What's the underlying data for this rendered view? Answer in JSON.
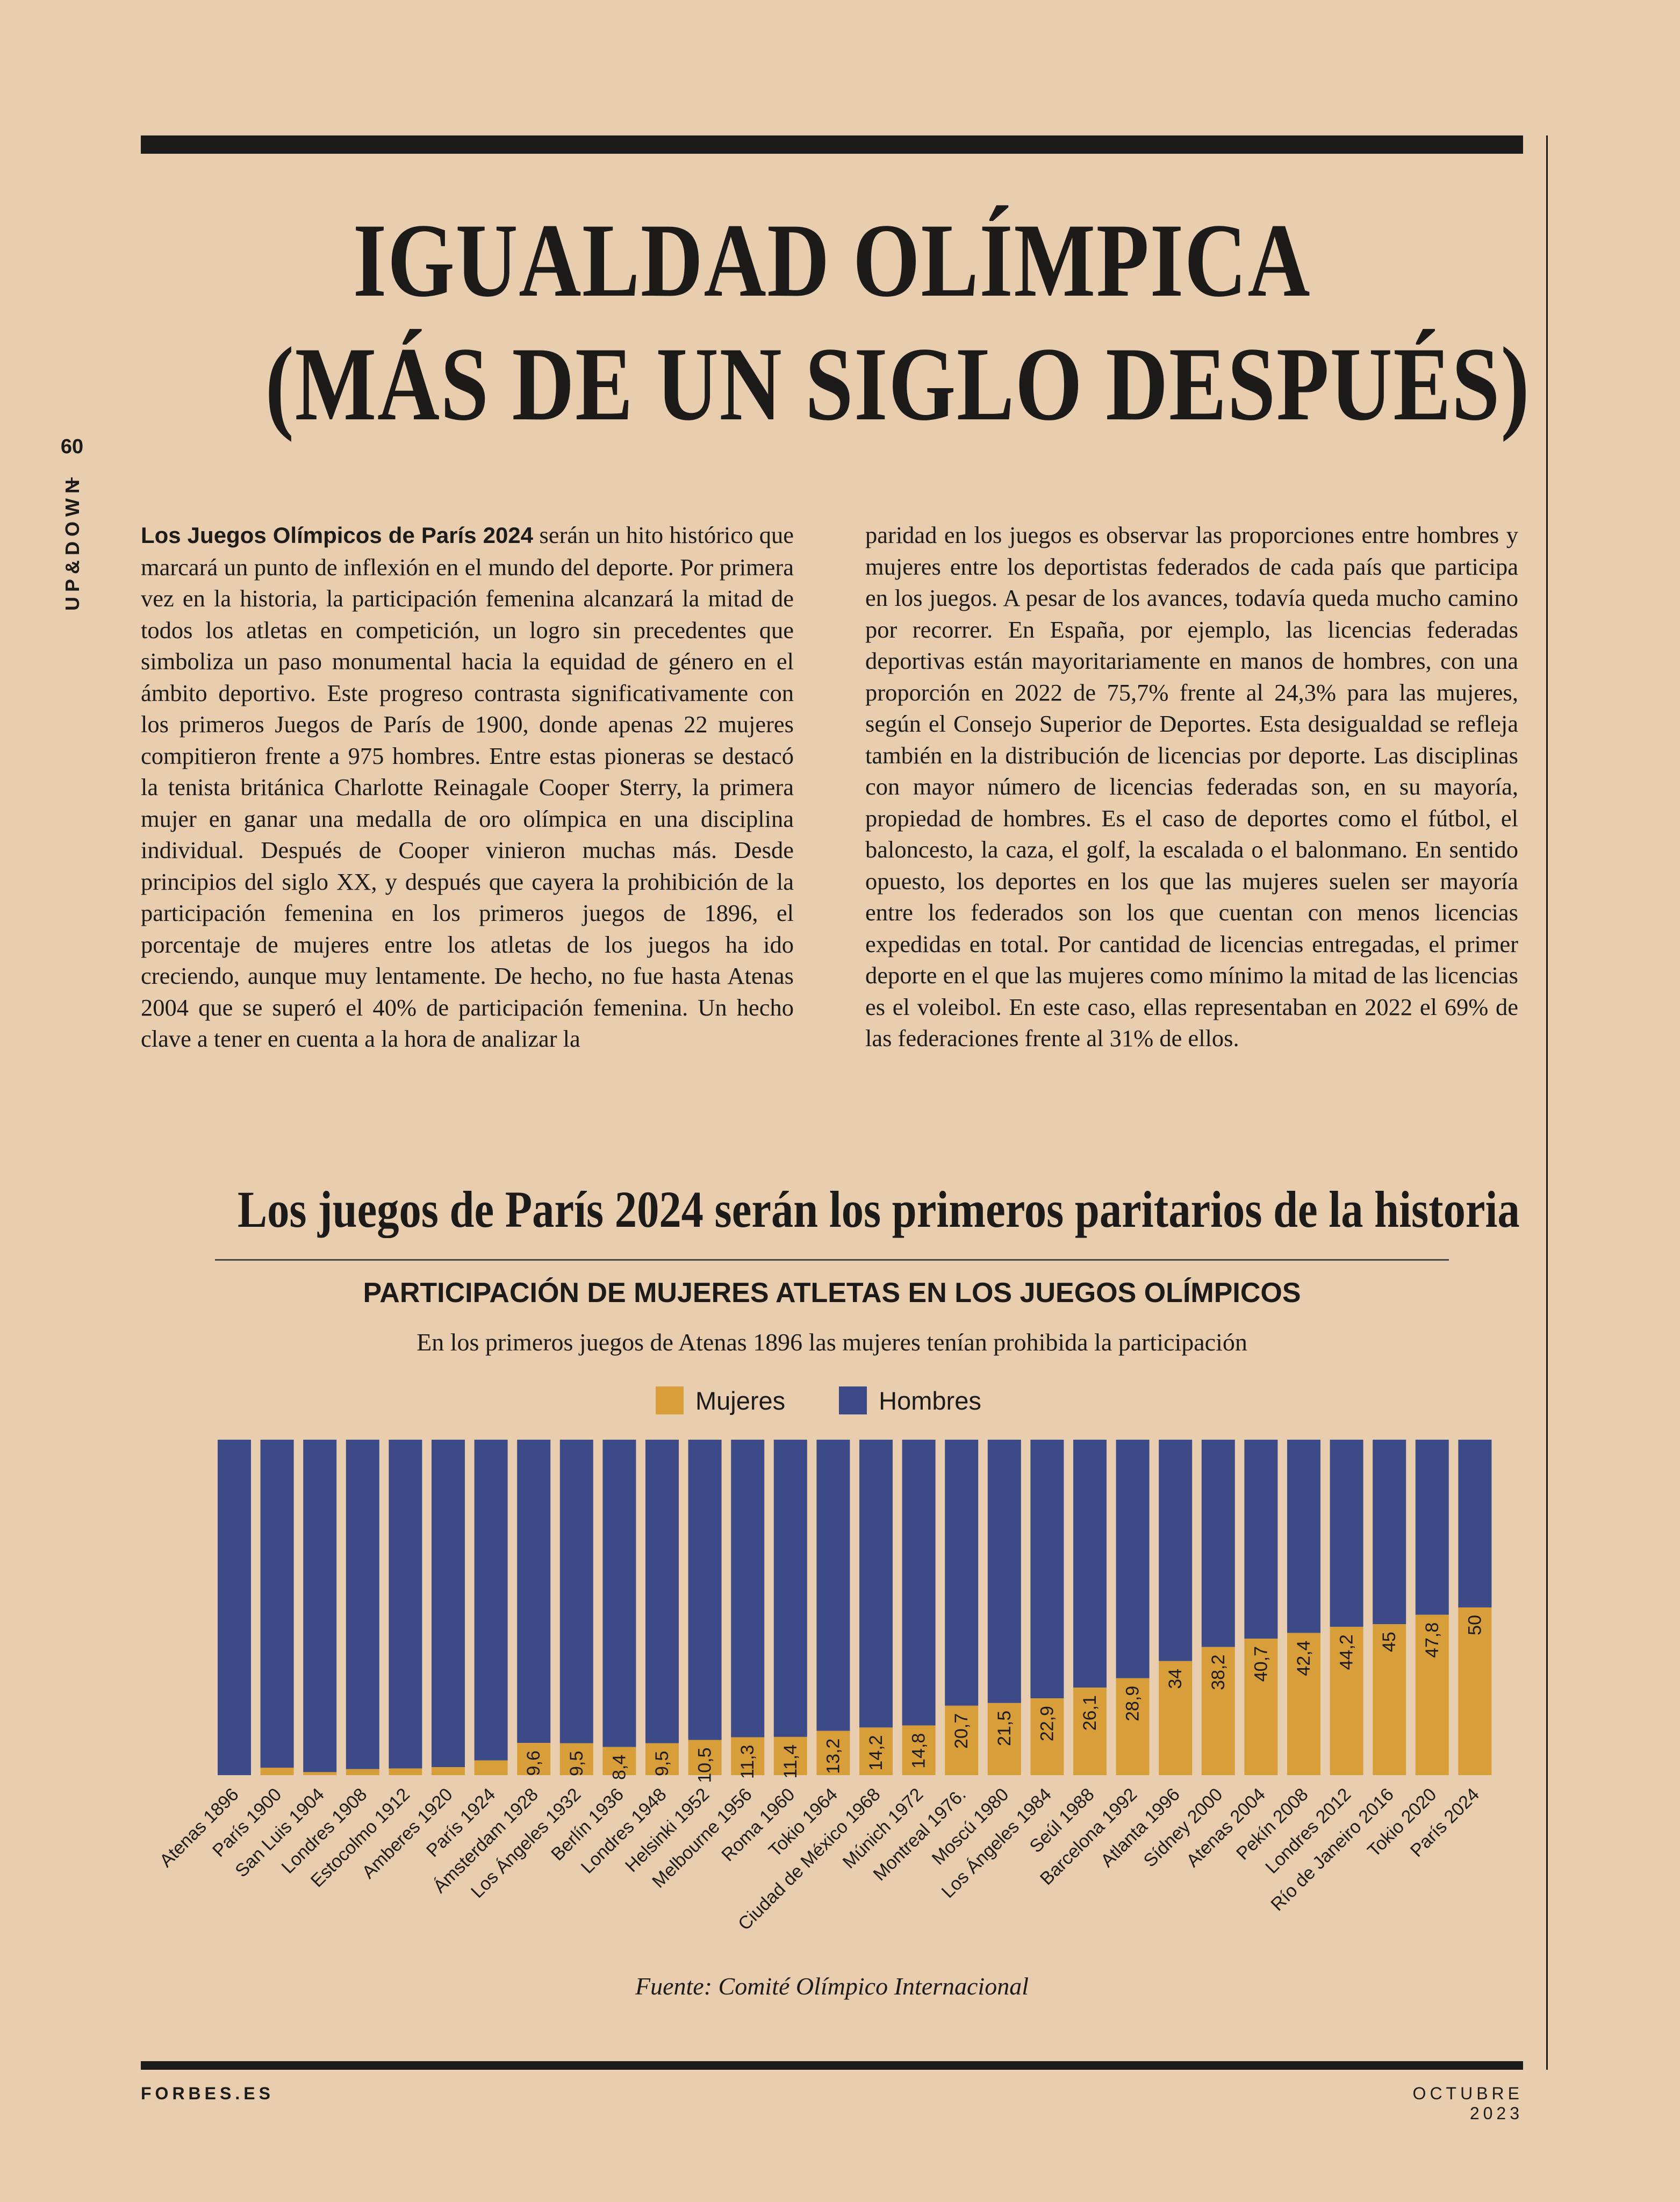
{
  "page": {
    "number": "60",
    "section": "UP&DOWN",
    "footer_left": "FORBES.ES",
    "footer_right": "OCTUBRE 2023"
  },
  "article": {
    "title_line1": "IGUALDAD OLÍMPICA",
    "title_line2": "(MÁS DE UN SIGLO DESPUÉS)",
    "lead": "Los Juegos Olímpicos de París 2024",
    "col1_text": " serán un hito histórico que marcará un punto de inflexión en el mundo del deporte. Por primera vez en la historia, la participación femenina alcanzará la mitad de todos los atletas en competición, un logro sin precedentes que simboliza un paso monumental hacia la equidad de género en el ámbito deportivo. Este progreso contrasta significativamente con los primeros Juegos de París de 1900, donde apenas 22 mujeres compitieron frente a 975 hombres. Entre estas pioneras se destacó la tenista británica Charlotte Reinagale Cooper Sterry, la primera mujer en ganar una medalla de oro olímpica en una disciplina individual. Después de Cooper vinieron muchas más. Desde principios del siglo XX, y después que cayera la prohibición de la participación femenina en los primeros juegos de 1896, el porcentaje de mujeres entre los atletas de los juegos ha ido creciendo, aunque muy lentamente. De hecho, no fue hasta Atenas 2004 que se superó el 40% de participación femenina. Un hecho clave a tener en cuenta a la hora de analizar la",
    "col2_text": "paridad en los juegos es observar las proporciones entre hombres y mujeres entre los deportistas federados de cada país que participa en los juegos. A pesar de los avances, todavía queda mucho camino por recorrer. En España, por ejemplo, las licencias federadas deportivas están mayoritariamente en manos de hombres, con una proporción en 2022 de 75,7% frente al 24,3% para las mujeres, según el Consejo Superior de Deportes. Esta desigualdad se refleja también en la distribución de licencias por deporte. Las disciplinas con mayor número de licencias federadas son, en su mayoría, propiedad de hombres. Es el caso de deportes como el fútbol, el baloncesto, la caza, el golf, la escalada o el balonmano. En sentido opuesto, los deportes en los que las mujeres suelen ser mayoría entre los federados son los que cuentan con menos licencias expedidas en total. Por cantidad de licencias entregadas, el primer deporte en el que las mujeres como mínimo la mitad de las licencias es el voleibol. En este caso, ellas representaban en 2022 el 69% de las federaciones frente al 31% de ellos."
  },
  "chart_section": {
    "headline": "Los juegos de París 2024 serán los primeros paritarios de la historia",
    "source": "Fuente: Comité Olímpico Internacional"
  },
  "chart_data": {
    "type": "bar",
    "stacked": true,
    "percent_stacked": true,
    "title": "PARTICIPACIÓN DE MUJERES ATLETAS EN LOS JUEGOS OLÍMPICOS",
    "subtitle": "En los primeros juegos de Atenas 1896 las mujeres tenían prohibida la participación",
    "legend": "top",
    "categories": [
      "Atenas 1896",
      "París 1900",
      "San Luis 1904",
      "Londres 1908",
      "Estocolmo 1912",
      "Amberes 1920",
      "París 1924",
      "Ámsterdam 1928",
      "Los Ángeles 1932",
      "Berlín 1936",
      "Londres 1948",
      "Helsinki 1952",
      "Melbourne 1956",
      "Roma 1960",
      "Tokio 1964",
      "Ciudad de México 1968",
      "Múnich 1972",
      "Montreal 1976.",
      "Moscú 1980",
      "Los Ángeles 1984",
      "Seúl 1988",
      "Barcelona 1992",
      "Atlanta 1996",
      "Sídney 2000",
      "Atenas 2004",
      "Pekín 2008",
      "Londres 2012",
      "Río de Janeiro 2016",
      "Tokio 2020",
      "París 2024"
    ],
    "series": [
      {
        "name": "Mujeres",
        "color": "#d89e3a",
        "values": [
          0,
          2.2,
          0.9,
          1.8,
          2.0,
          2.4,
          4.4,
          9.6,
          9.5,
          8.4,
          9.5,
          10.5,
          11.3,
          11.4,
          13.2,
          14.2,
          14.8,
          20.7,
          21.5,
          22.9,
          26.1,
          28.9,
          34,
          38.2,
          40.7,
          42.4,
          44.2,
          45,
          47.8,
          50
        ],
        "labels": [
          "",
          "",
          "",
          "",
          "",
          "",
          "",
          "9,6",
          "9,5",
          "8,4",
          "9,5",
          "10,5",
          "11,3",
          "11,4",
          "13,2",
          "14,2",
          "14,8",
          "20,7",
          "21,5",
          "22,9",
          "26,1",
          "28,9",
          "34",
          "38,2",
          "40,7",
          "42,4",
          "44,2",
          "45",
          "47,8",
          "50"
        ]
      },
      {
        "name": "Hombres",
        "color": "#3c4a88",
        "values": [
          100,
          97.8,
          99.1,
          98.2,
          98.0,
          97.6,
          95.6,
          90.4,
          90.5,
          91.6,
          90.5,
          89.5,
          88.7,
          88.6,
          86.8,
          85.8,
          85.2,
          79.3,
          78.5,
          77.1,
          73.9,
          71.1,
          66,
          61.8,
          59.3,
          57.6,
          55.8,
          55,
          52.2,
          50
        ]
      }
    ],
    "ylim": [
      0,
      100
    ]
  }
}
